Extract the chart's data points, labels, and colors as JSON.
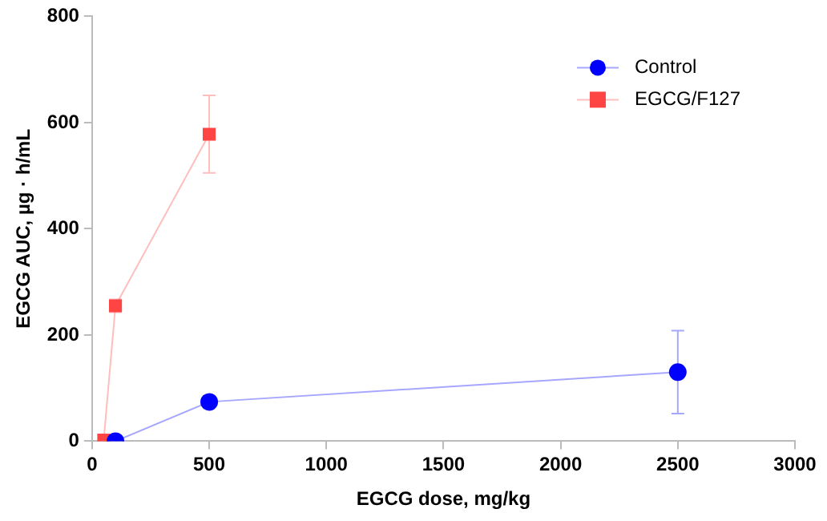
{
  "chart_data": {
    "type": "line",
    "xlabel": "EGCG dose, mg/kg",
    "ylabel": "EGCG AUC, µg · h/mL",
    "xlim": [
      0,
      3000
    ],
    "xticks": [
      0,
      500,
      1000,
      1500,
      2000,
      2500,
      3000
    ],
    "ylim": [
      0,
      800
    ],
    "yticks": [
      0,
      200,
      400,
      600,
      800
    ],
    "grid": false,
    "legend": "top right",
    "line_style": "solid",
    "series": [
      {
        "name": "Control",
        "color": "#0000ff",
        "marker": "circle",
        "x": [
          100,
          500,
          2500
        ],
        "values": [
          0,
          74,
          130
        ],
        "errors": [
          null,
          10,
          78
        ]
      },
      {
        "name": "EGCG/F127",
        "color": "#ff4444",
        "marker": "square",
        "x": [
          50,
          100,
          500
        ],
        "values": [
          2,
          255,
          578
        ],
        "errors": [
          null,
          12,
          73
        ]
      }
    ]
  }
}
